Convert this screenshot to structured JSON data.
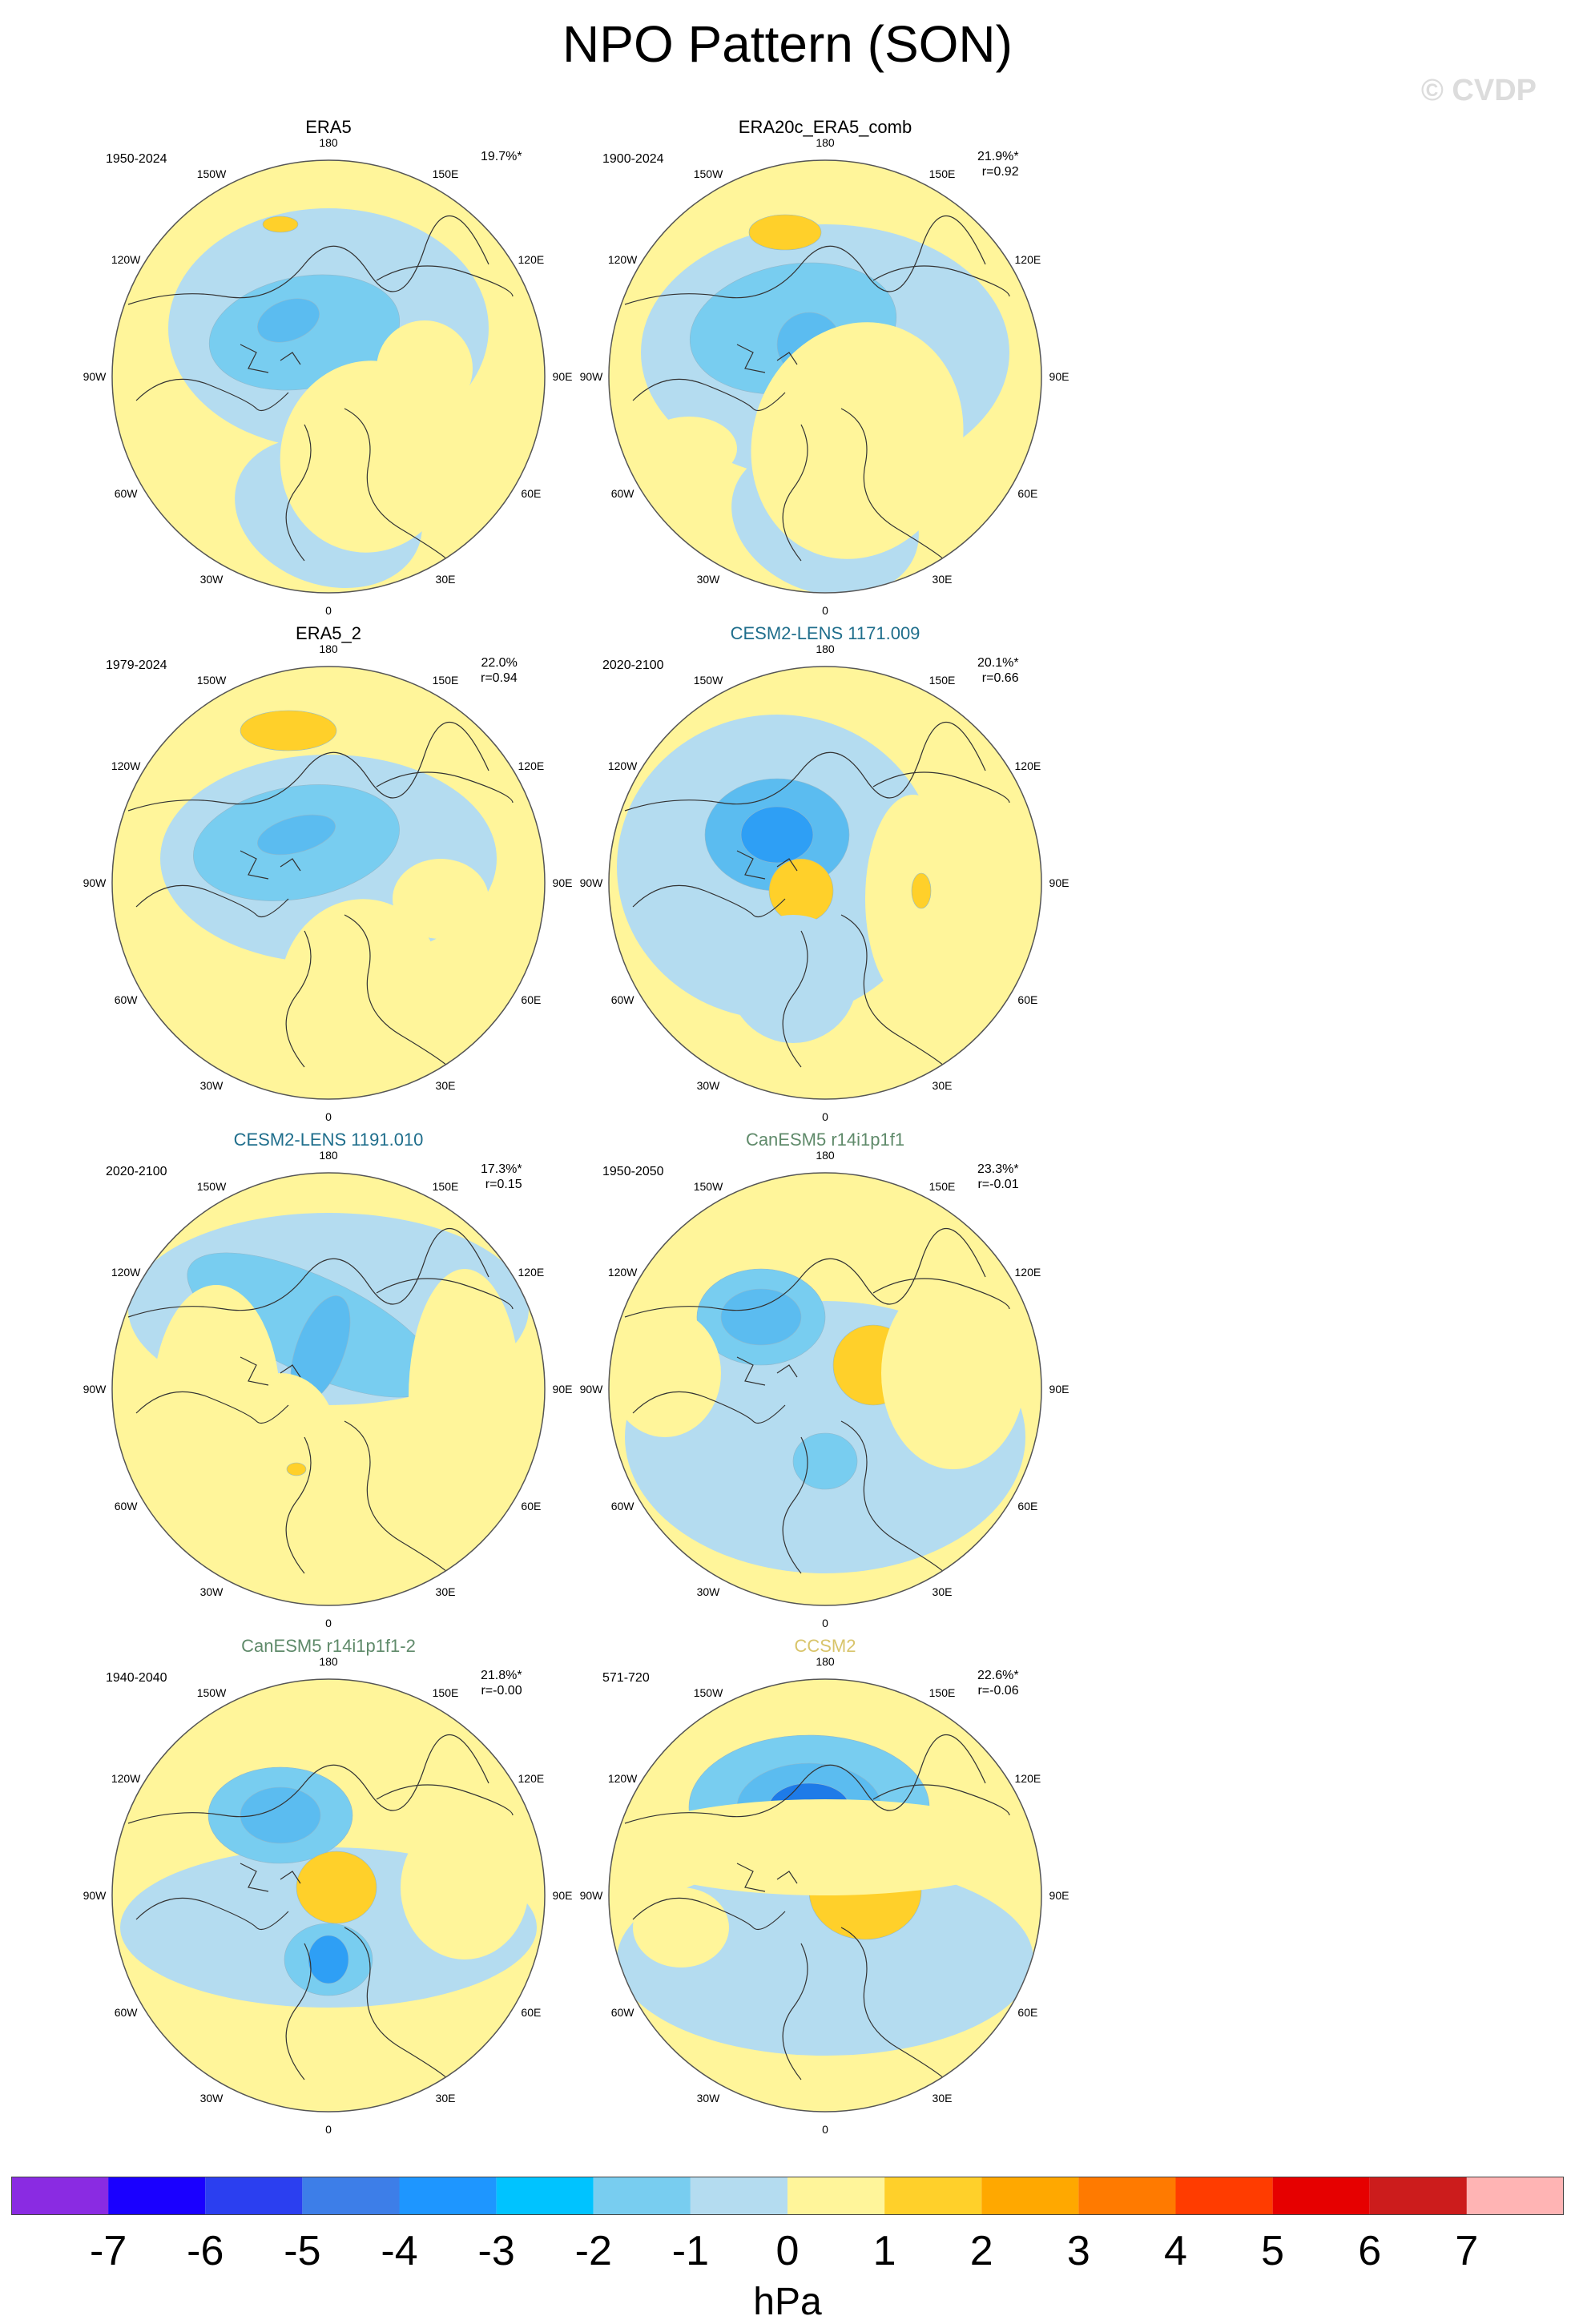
{
  "title": "NPO Pattern (SON)",
  "watermark": "© CVDP",
  "panels": [
    {
      "title": "ERA5",
      "title_color": "#000000",
      "period": "1950-2024",
      "pct": "19.7%*",
      "r": ""
    },
    {
      "title": "ERA20c_ERA5_comb",
      "title_color": "#000000",
      "period": "1900-2024",
      "pct": "21.9%*",
      "r": "r=0.92"
    },
    {
      "title": "ERA5_2",
      "title_color": "#000000",
      "period": "1979-2024",
      "pct": "22.0%",
      "r": "r=0.94"
    },
    {
      "title": "CESM2-LENS 1171.009",
      "title_color": "#1f6e8c",
      "period": "2020-2100",
      "pct": "20.1%*",
      "r": "r=0.66"
    },
    {
      "title": "CESM2-LENS 1191.010",
      "title_color": "#1f6e8c",
      "period": "2020-2100",
      "pct": "17.3%*",
      "r": "r=0.15"
    },
    {
      "title": "CanESM5 r14i1p1f1",
      "title_color": "#5f8a6a",
      "period": "1950-2050",
      "pct": "23.3%*",
      "r": "r=-0.01"
    },
    {
      "title": "CanESM5 r14i1p1f1-2",
      "title_color": "#5f8a6a",
      "period": "1940-2040",
      "pct": "21.8%*",
      "r": "r=-0.00"
    },
    {
      "title": "CCSM2",
      "title_color": "#d8c46a",
      "period": "571-720",
      "pct": "22.6%*",
      "r": "r=-0.06"
    }
  ],
  "lon_labels": {
    "top": "180",
    "bottom": "0",
    "w150": "150W",
    "e150": "150E",
    "w120": "120W",
    "e120": "120E",
    "w90": "90W",
    "e90": "90E",
    "w60": "60W",
    "e60": "60E",
    "w30": "30W",
    "e30": "30E"
  },
  "colorbar": {
    "unit": "hPa",
    "ticks": [
      "-7",
      "-6",
      "-5",
      "-4",
      "-3",
      "-2",
      "-1",
      "0",
      "1",
      "2",
      "3",
      "4",
      "5",
      "6",
      "7"
    ],
    "colors": [
      "#8a2be2",
      "#1a00ff",
      "#2b3ff0",
      "#3d7ee8",
      "#1e96ff",
      "#00c3ff",
      "#78cdf0",
      "#b4dcf0",
      "#fff59a",
      "#ffd02a",
      "#ffa800",
      "#ff7a00",
      "#ff3c00",
      "#e60000",
      "#cc1c1c",
      "#ffb4b4"
    ]
  }
}
